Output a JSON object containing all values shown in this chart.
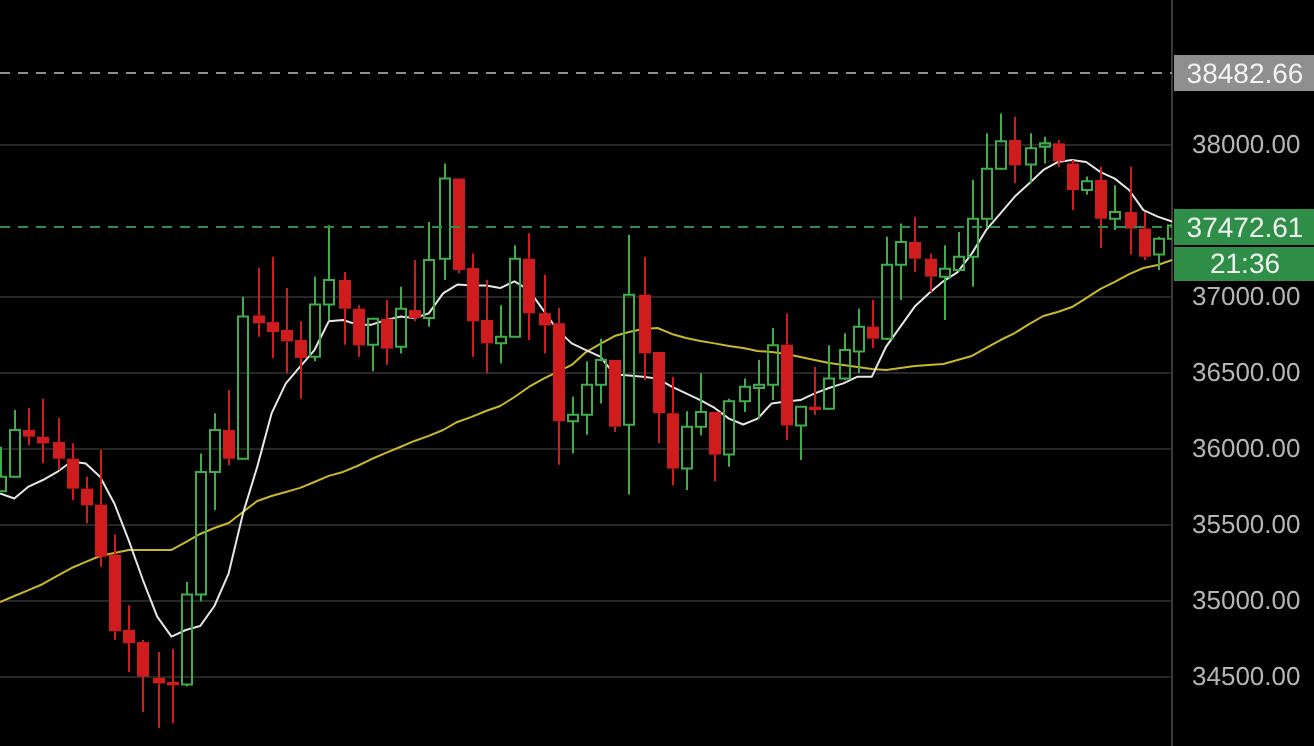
{
  "chart_data": {
    "type": "candlestick",
    "categories": [
      null,
      null,
      null,
      null,
      null,
      null,
      null,
      null,
      null,
      null,
      null,
      null,
      null,
      null,
      null,
      null,
      null,
      null,
      null,
      null,
      null,
      null,
      null,
      null,
      null,
      null,
      null,
      null,
      null,
      null,
      null,
      null,
      null,
      null,
      null,
      null,
      null,
      null,
      null,
      null,
      null,
      null,
      null,
      null,
      null,
      null,
      null,
      null,
      null,
      null,
      null,
      null,
      null,
      null,
      null,
      null,
      null,
      null,
      null,
      null,
      null,
      null,
      null,
      null,
      null,
      null,
      null,
      null,
      null,
      null,
      null,
      null,
      null,
      null,
      null,
      null,
      null,
      null,
      null,
      null,
      null,
      null,
      null
    ],
    "ohlc": [
      [
        35725,
        36018,
        35720,
        35821
      ],
      [
        35821,
        36260,
        35815,
        36128
      ],
      [
        36128,
        36273,
        36027,
        36084
      ],
      [
        36084,
        36334,
        35909,
        36040
      ],
      [
        36049,
        36207,
        35865,
        35939
      ],
      [
        35939,
        36040,
        35667,
        35742
      ],
      [
        35742,
        35821,
        35514,
        35632
      ],
      [
        35637,
        35996,
        35229,
        35295
      ],
      [
        35308,
        35440,
        34747,
        34804
      ],
      [
        34813,
        34975,
        34536,
        34725
      ],
      [
        34733,
        34747,
        34273,
        34505
      ],
      [
        34497,
        34668,
        34167,
        34461
      ],
      [
        34470,
        34689,
        34198,
        34448
      ],
      [
        34453,
        35128,
        34440,
        35045
      ],
      [
        35045,
        35974,
        35001,
        35852
      ],
      [
        35852,
        36238,
        35602,
        36128
      ],
      [
        36128,
        36391,
        35896,
        35939
      ],
      [
        35939,
        37005,
        35935,
        36874
      ],
      [
        36882,
        37194,
        36742,
        36830
      ],
      [
        36838,
        37268,
        36602,
        36773
      ],
      [
        36786,
        37062,
        36501,
        36711
      ],
      [
        36720,
        36843,
        36334,
        36602
      ],
      [
        36610,
        37137,
        36580,
        36953
      ],
      [
        36953,
        37475,
        36852,
        37115
      ],
      [
        37115,
        37167,
        36689,
        36926
      ],
      [
        36926,
        36948,
        36610,
        36685
      ],
      [
        36689,
        36860,
        36514,
        36860
      ],
      [
        36860,
        36983,
        36558,
        36663
      ],
      [
        36676,
        37071,
        36632,
        36926
      ],
      [
        36917,
        37246,
        36843,
        36865
      ],
      [
        36865,
        37496,
        36808,
        37246
      ],
      [
        37255,
        37882,
        37115,
        37782
      ],
      [
        37782,
        37782,
        37159,
        37181
      ],
      [
        37194,
        37290,
        36610,
        36843
      ],
      [
        36852,
        37115,
        36501,
        36698
      ],
      [
        36698,
        36948,
        36567,
        36742
      ],
      [
        36742,
        37343,
        36738,
        37255
      ],
      [
        37255,
        37422,
        36720,
        36896
      ],
      [
        36896,
        37150,
        36632,
        36816
      ],
      [
        36830,
        36931,
        35900,
        36185
      ],
      [
        36185,
        36347,
        35974,
        36229
      ],
      [
        36229,
        36580,
        36097,
        36426
      ],
      [
        36426,
        36729,
        36303,
        36589
      ],
      [
        36589,
        36589,
        36115,
        36150
      ],
      [
        36163,
        37413,
        35703,
        37018
      ],
      [
        37018,
        37268,
        36457,
        36632
      ],
      [
        36641,
        36641,
        36040,
        36238
      ],
      [
        36238,
        36479,
        35764,
        35874
      ],
      [
        35874,
        36251,
        35733,
        36150
      ],
      [
        36150,
        36501,
        36093,
        36246
      ],
      [
        36246,
        36246,
        35790,
        35966
      ],
      [
        35966,
        36334,
        35887,
        36317
      ],
      [
        36317,
        36466,
        36246,
        36413
      ],
      [
        36404,
        36589,
        36202,
        36426
      ],
      [
        36426,
        36799,
        36325,
        36685
      ],
      [
        36689,
        36895,
        36062,
        36158
      ],
      [
        36158,
        36281,
        35930,
        36281
      ],
      [
        36281,
        36544,
        36229,
        36259
      ],
      [
        36268,
        36685,
        36260,
        36466
      ],
      [
        36466,
        36764,
        36457,
        36654
      ],
      [
        36645,
        36926,
        36501,
        36808
      ],
      [
        36808,
        36983,
        36667,
        36729
      ],
      [
        36729,
        37400,
        36720,
        37215
      ],
      [
        37215,
        37487,
        36983,
        37365
      ],
      [
        37365,
        37531,
        37167,
        37255
      ],
      [
        37255,
        37290,
        37036,
        37137
      ],
      [
        37137,
        37343,
        36851,
        37189
      ],
      [
        37180,
        37430,
        37167,
        37268
      ],
      [
        37268,
        37773,
        37071,
        37518
      ],
      [
        37518,
        38080,
        37457,
        37847
      ],
      [
        37847,
        38211,
        37840,
        38027
      ],
      [
        38036,
        38189,
        37751,
        37869
      ],
      [
        37874,
        38080,
        37751,
        37981
      ],
      [
        37992,
        38058,
        37882,
        38014
      ],
      [
        38014,
        38036,
        37860,
        37896
      ],
      [
        37882,
        37904,
        37575,
        37707
      ],
      [
        37707,
        37795,
        37676,
        37764
      ],
      [
        37773,
        37860,
        37325,
        37518
      ],
      [
        37518,
        37738,
        37444,
        37562
      ],
      [
        37562,
        37860,
        37282,
        37453
      ],
      [
        37453,
        37562,
        37246,
        37268
      ],
      [
        37282,
        37400,
        37181,
        37387
      ],
      [
        37387,
        37518,
        37343,
        37472.61
      ]
    ],
    "colors": [
      "#3fae49",
      "#3fae49",
      "#d01c1c",
      "#d01c1c",
      "#d01c1c",
      "#d01c1c",
      "#d01c1c",
      "#d01c1c",
      "#d01c1c",
      "#d01c1c",
      "#d01c1c",
      "#d01c1c",
      "#d01c1c",
      "#3fae49",
      "#3fae49",
      "#3fae49",
      "#d01c1c",
      "#3fae49",
      "#d01c1c",
      "#d01c1c",
      "#d01c1c",
      "#d01c1c",
      "#3fae49",
      "#3fae49",
      "#d01c1c",
      "#d01c1c",
      "#3fae49",
      "#d01c1c",
      "#3fae49",
      "#d01c1c",
      "#3fae49",
      "#3fae49",
      "#d01c1c",
      "#d01c1c",
      "#d01c1c",
      "#3fae49",
      "#3fae49",
      "#d01c1c",
      "#d01c1c",
      "#d01c1c",
      "#3fae49",
      "#3fae49",
      "#3fae49",
      "#d01c1c",
      "#3fae49",
      "#d01c1c",
      "#d01c1c",
      "#d01c1c",
      "#3fae49",
      "#3fae49",
      "#d01c1c",
      "#3fae49",
      "#3fae49",
      "#3fae49",
      "#3fae49",
      "#d01c1c",
      "#3fae49",
      "#d01c1c",
      "#3fae49",
      "#3fae49",
      "#3fae49",
      "#d01c1c",
      "#3fae49",
      "#3fae49",
      "#d01c1c",
      "#d01c1c",
      "#3fae49",
      "#3fae49",
      "#3fae49",
      "#3fae49",
      "#3fae49",
      "#d01c1c",
      "#3fae49",
      "#3fae49",
      "#d01c1c",
      "#d01c1c",
      "#3fae49",
      "#d01c1c",
      "#3fae49",
      "#d01c1c",
      "#d01c1c",
      "#3fae49",
      "#3fae49"
    ],
    "series": [
      {
        "type": "line",
        "color": "#e6e6e6",
        "values": [
          35711,
          35677,
          35756,
          35799,
          35852,
          35921,
          35908,
          35821,
          35645,
          35404,
          35141,
          34900,
          34769,
          34812,
          34838,
          34970,
          35185,
          35579,
          35887,
          36237,
          36435,
          36545,
          36654,
          36843,
          36852,
          36821,
          36821,
          36852,
          36874,
          36865,
          36895,
          37027,
          37085,
          37079,
          37079,
          37062,
          37106,
          37049,
          36918,
          36786,
          36698,
          36654,
          36611,
          36493,
          36487,
          36479,
          36466,
          36414,
          36369,
          36325,
          36273,
          36203,
          36164,
          36203,
          36303,
          36316,
          36325,
          36369,
          36404,
          36435,
          36479,
          36479,
          36677,
          36808,
          36940,
          37027,
          37106,
          37167,
          37290,
          37444,
          37553,
          37664,
          37750,
          37839,
          37891,
          37904,
          37891,
          37825,
          37782,
          37707,
          37575,
          37532,
          37500
        ]
      },
      {
        "type": "line",
        "color": "#c9b92a",
        "values": [
          34996,
          35036,
          35075,
          35115,
          35168,
          35220,
          35260,
          35299,
          35319,
          35339,
          35339,
          35339,
          35339,
          35391,
          35444,
          35483,
          35516,
          35589,
          35661,
          35694,
          35720,
          35747,
          35786,
          35826,
          35852,
          35891,
          35937,
          35977,
          36016,
          36056,
          36089,
          36128,
          36181,
          36214,
          36253,
          36286,
          36345,
          36411,
          36464,
          36510,
          36556,
          36641,
          36694,
          36746,
          36773,
          36793,
          36799,
          36760,
          36733,
          36714,
          36698,
          36681,
          36668,
          36648,
          36641,
          36628,
          36608,
          36589,
          36569,
          36556,
          36543,
          36529,
          36523,
          36536,
          36549,
          36556,
          36562,
          36589,
          36615,
          36668,
          36720,
          36766,
          36825,
          36878,
          36904,
          36937,
          36996,
          37056,
          37102,
          37154,
          37194,
          37214,
          37246
        ]
      }
    ],
    "ylim": [
      34049,
      38957
    ],
    "yticks": [
      {
        "value": 34500,
        "label": "34500.00"
      },
      {
        "value": 35000,
        "label": "35000.00"
      },
      {
        "value": 35500,
        "label": "35500.00"
      },
      {
        "value": 36000,
        "label": "36000.00"
      },
      {
        "value": 36500,
        "label": "36500.00"
      },
      {
        "value": 37000,
        "label": "37000.00"
      },
      {
        "value": 38000,
        "label": "38000.00"
      }
    ],
    "ref_lines": [
      {
        "axis": "y",
        "value": 38482.66,
        "label": "38482.66",
        "color": "#8f8f8f",
        "line_style": "dashed"
      },
      {
        "axis": "y",
        "value": 37472.61,
        "label": "37472.61",
        "color": "#2f8f48",
        "line_style": "dashed"
      }
    ],
    "annotations": [
      "21:36"
    ],
    "grid": "y",
    "tick_labels": "y",
    "marker": "none"
  }
}
